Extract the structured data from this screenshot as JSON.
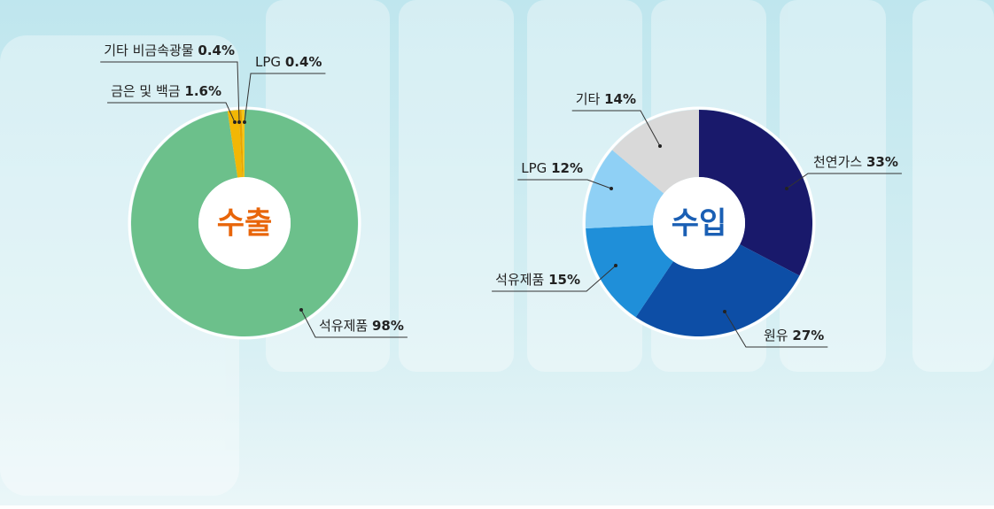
{
  "chart_data": [
    {
      "type": "pie",
      "title": "수출",
      "title_color": "#e8650a",
      "categories": [
        "석유제품",
        "금은 및 백금",
        "기타 비금속광물",
        "LPG"
      ],
      "values": [
        98,
        1.6,
        0.4,
        0.4
      ],
      "value_labels": [
        "98%",
        "1.6%",
        "0.4%",
        "0.4%"
      ],
      "colors": [
        "#6cc08b",
        "#f2b705",
        "#e8a400",
        "#f5c518"
      ]
    },
    {
      "type": "pie",
      "title": "수입",
      "title_color": "#1a5fb4",
      "categories": [
        "천연가스",
        "원유",
        "석유제품",
        "LPG",
        "기타"
      ],
      "values": [
        33,
        27,
        15,
        12,
        14
      ],
      "value_labels": [
        "33%",
        "27%",
        "15%",
        "12%",
        "14%"
      ],
      "colors": [
        "#19196b",
        "#0d4ea6",
        "#1f8fd9",
        "#8fd0f5",
        "#d9d9d9"
      ]
    }
  ]
}
